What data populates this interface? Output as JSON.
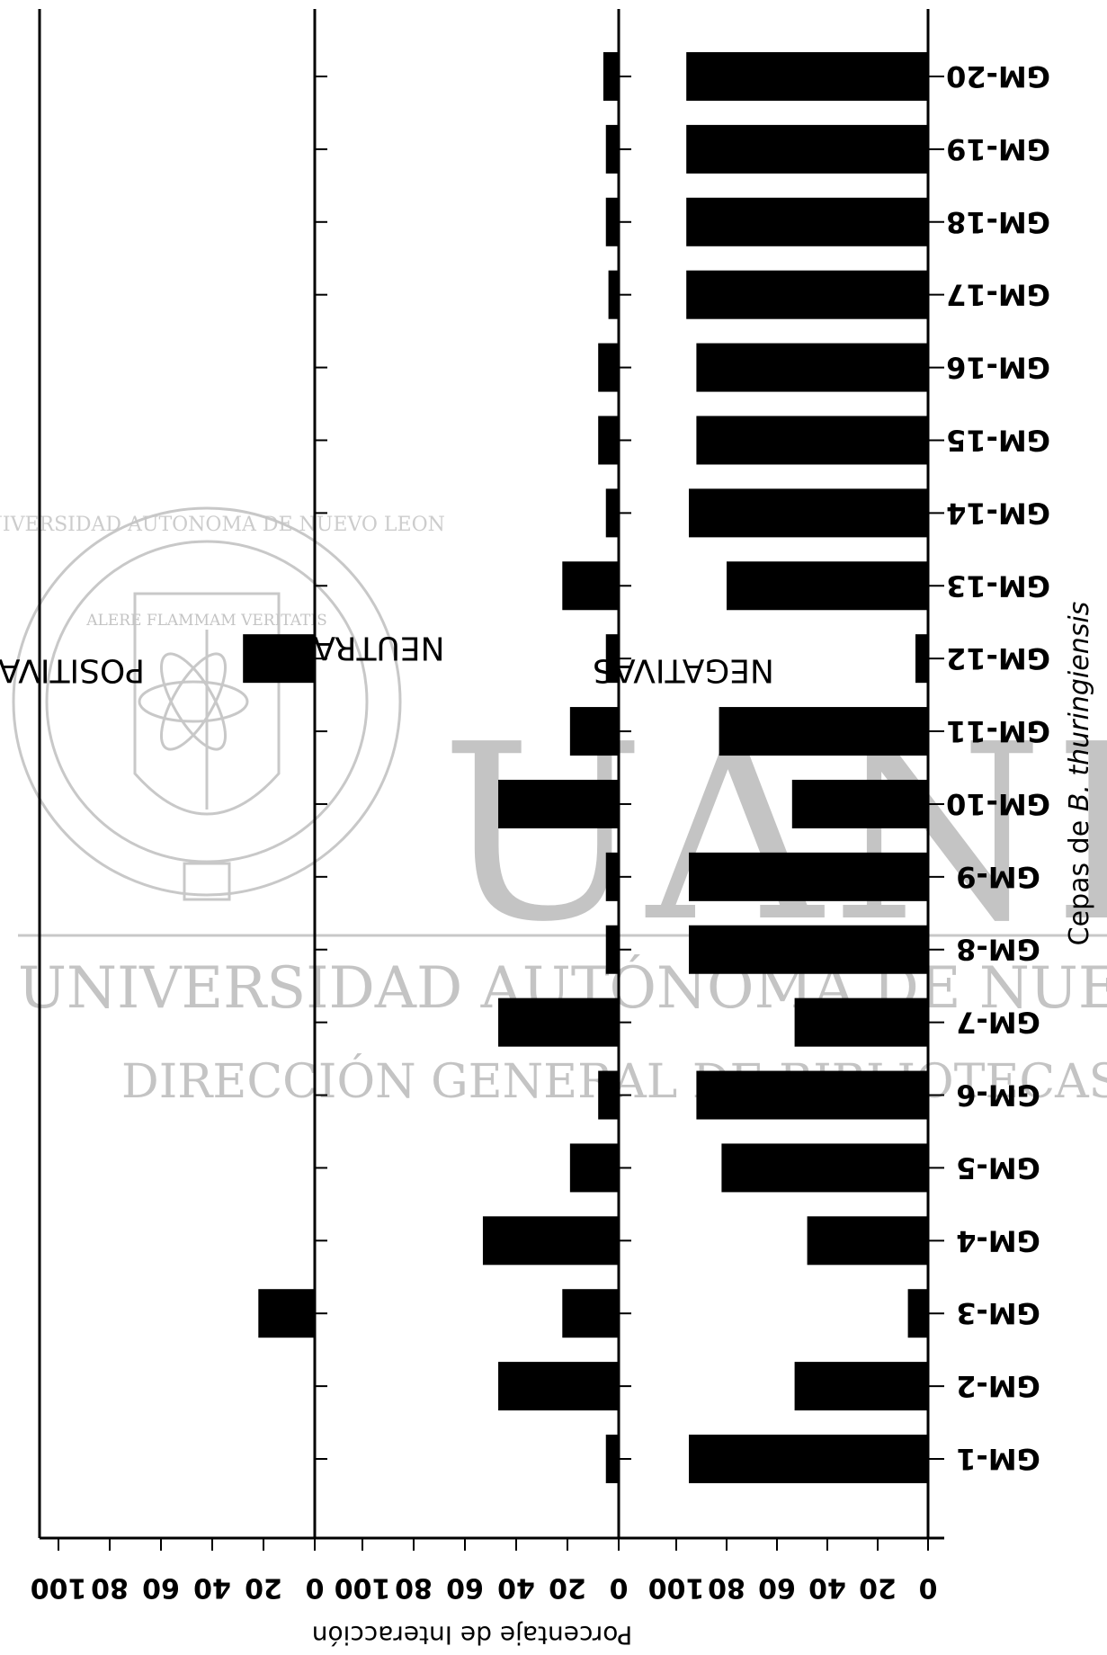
{
  "watermark": {
    "logo_text": "UANL",
    "line1": "UNIVERSIDAD AUTÓNOMA DE NUEVO LEÓN",
    "line2": "DIRECCIÓN GENERAL DE BIBLIOTECAS",
    "seal_ring": "UNIVERSIDAD AUTONOMA DE NUEVO LEON",
    "seal_motto": "ALERE FLAMMAM VERITATIS"
  },
  "chart_data": {
    "type": "bar",
    "orientation": "horizontal",
    "page_rotated_180": true,
    "categories": [
      "GM-1",
      "GM-2",
      "GM-3",
      "GM-4",
      "GM-5",
      "GM-6",
      "GM-7",
      "GM-8",
      "GM-9",
      "GM-10",
      "GM-11",
      "GM-12",
      "GM-13",
      "GM-14",
      "GM-15",
      "GM-16",
      "GM-17",
      "GM-18",
      "GM-19",
      "GM-20"
    ],
    "ylabel_prefix": "Cepas de ",
    "ylabel_italic": "B. thuringiensis",
    "xlabel": "Porcentaje de Interacción",
    "xlim": [
      0,
      100
    ],
    "ticks": [
      "0",
      "20",
      "40",
      "60",
      "80",
      "100"
    ],
    "series": [
      {
        "name": "NEGATIVAS",
        "values": [
          95,
          53,
          8,
          48,
          82,
          92,
          53,
          95,
          95,
          54,
          83,
          5,
          80,
          95,
          92,
          92,
          96,
          96,
          96,
          96
        ]
      },
      {
        "name": "NEUTRAS",
        "values": [
          5,
          47,
          22,
          53,
          19,
          8,
          47,
          5,
          5,
          47,
          19,
          5,
          22,
          5,
          8,
          8,
          4,
          5,
          5,
          6
        ]
      },
      {
        "name": "POSITIVAS",
        "values": [
          0,
          0,
          22,
          0,
          0,
          0,
          0,
          0,
          0,
          0,
          0,
          28,
          0,
          0,
          0,
          0,
          0,
          0,
          0,
          0
        ]
      }
    ],
    "bar_color": "#000000"
  }
}
